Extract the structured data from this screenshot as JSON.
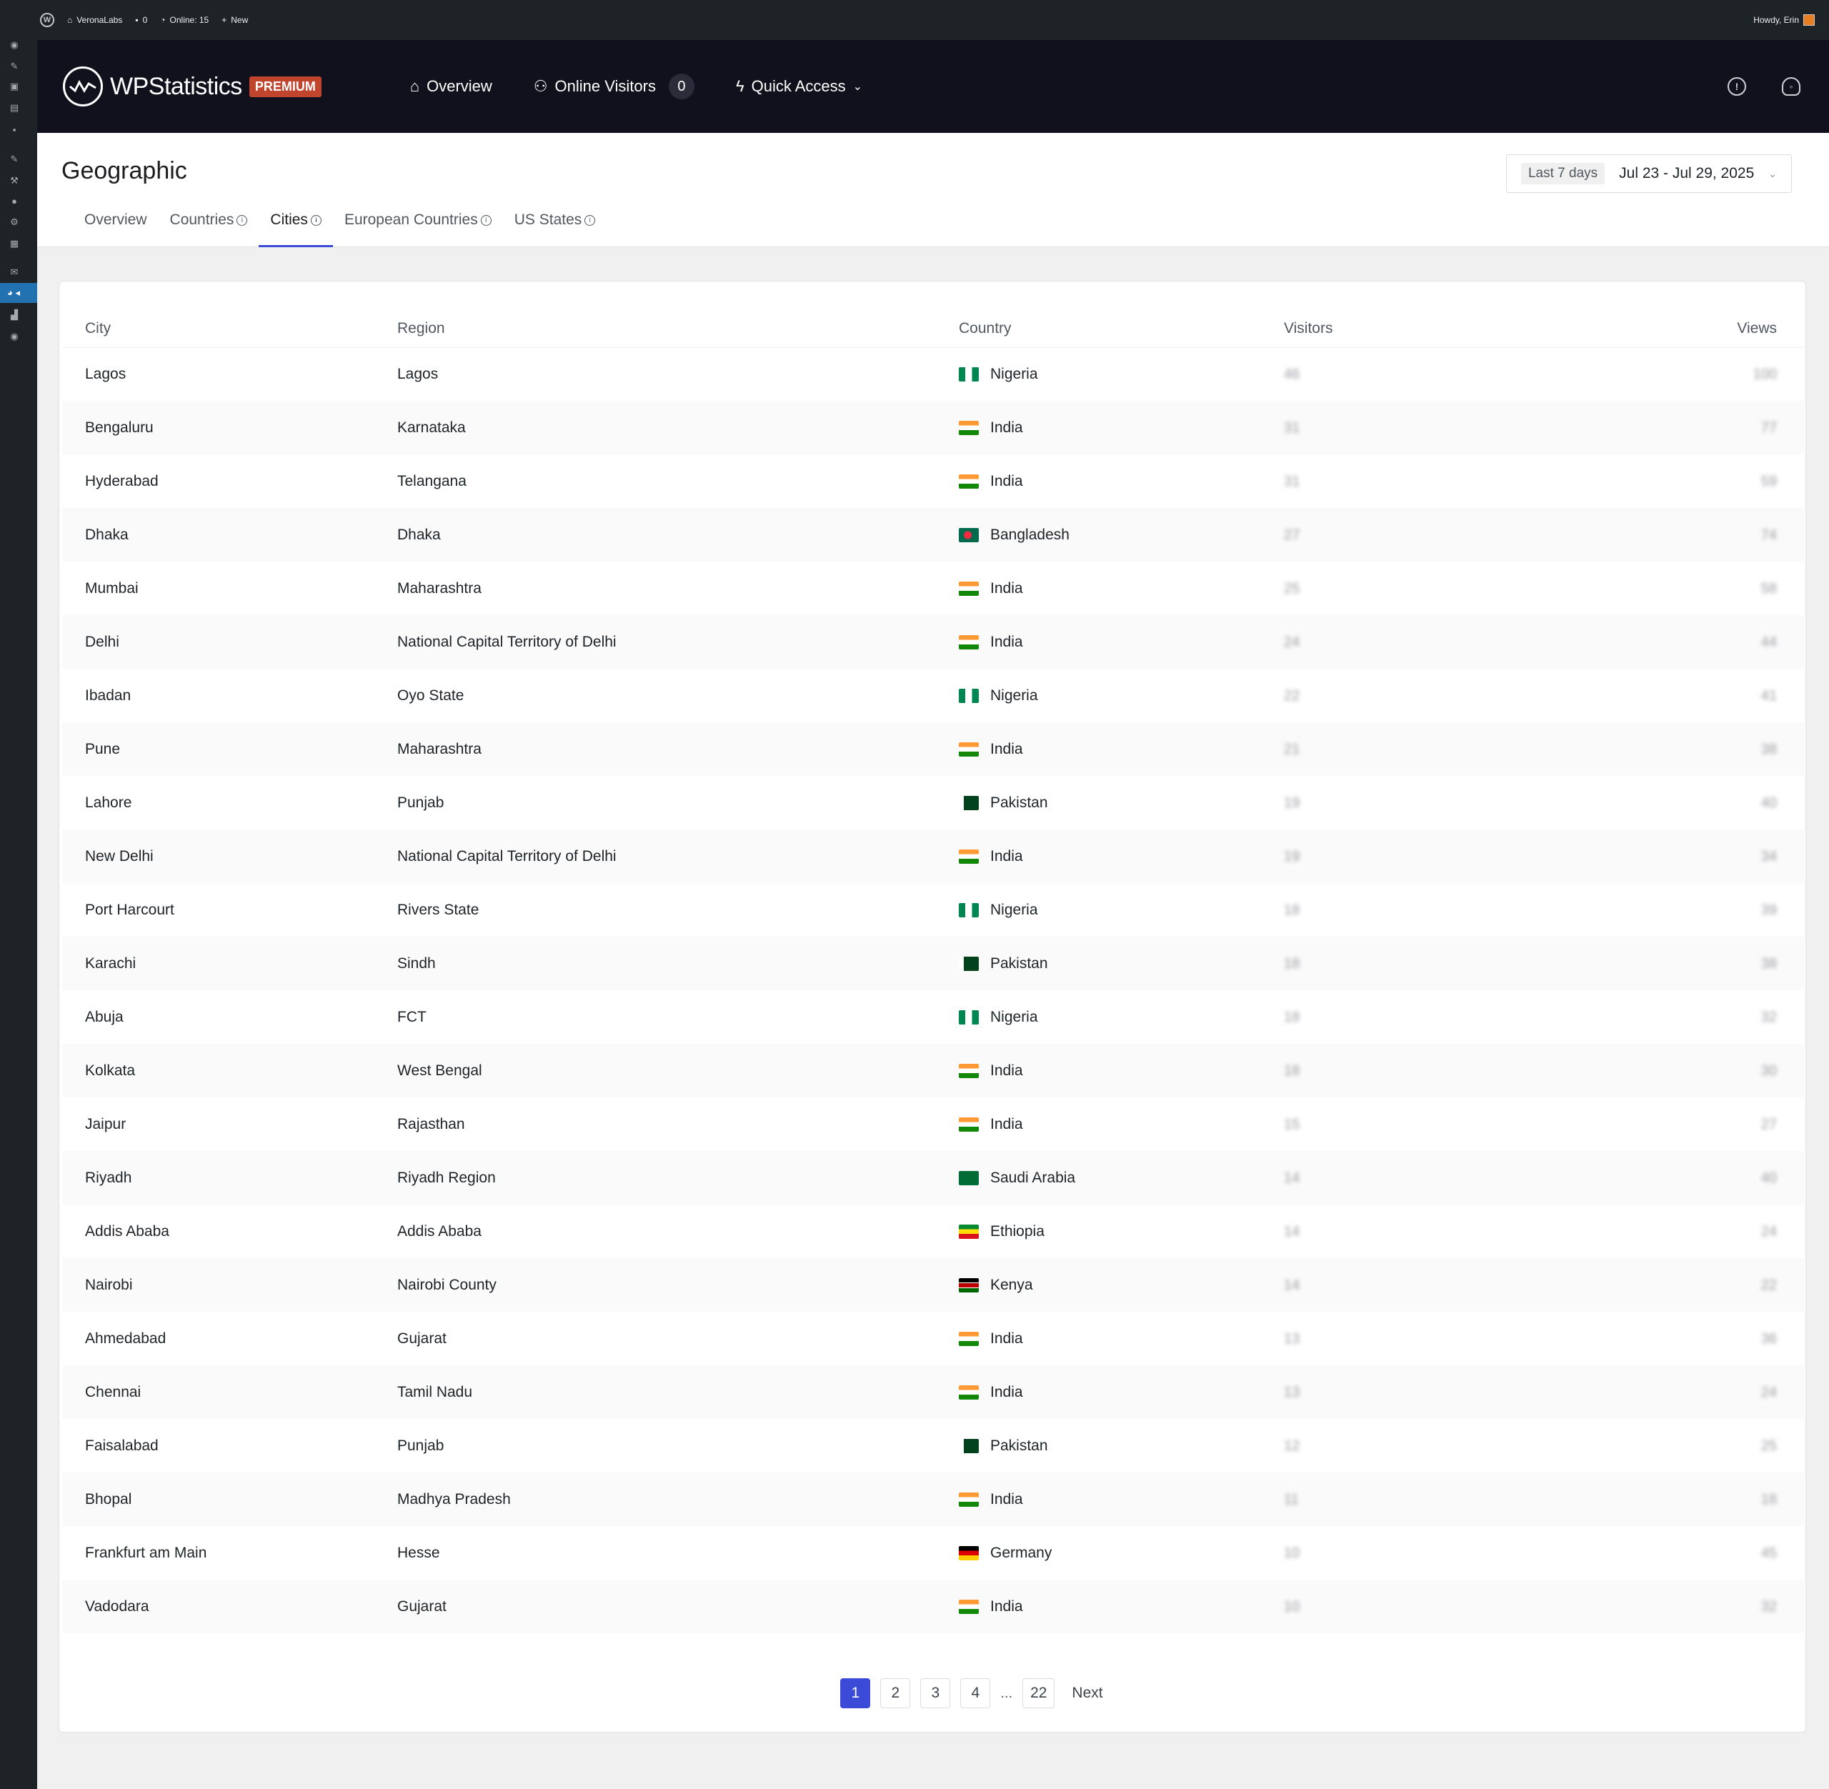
{
  "admin_bar": {
    "site_name": "VeronaLabs",
    "comments_count": "0",
    "online": "Online: 15",
    "new_label": "New",
    "greeting": "Howdy, Erin"
  },
  "header": {
    "logo_text": "WPStatistics",
    "premium_badge": "PREMIUM",
    "nav": {
      "overview": "Overview",
      "online_visitors": "Online Visitors",
      "online_visitors_count": "0",
      "quick_access": "Quick Access"
    }
  },
  "page": {
    "title": "Geographic",
    "date_preset": "Last 7 days",
    "date_range": "Jul 23 - Jul 29, 2025",
    "tabs": [
      {
        "label": "Overview"
      },
      {
        "label": "Countries"
      },
      {
        "label": "Cities"
      },
      {
        "label": "European Countries"
      },
      {
        "label": "US States"
      }
    ]
  },
  "table": {
    "columns": {
      "city": "City",
      "region": "Region",
      "country": "Country",
      "visitors": "Visitors",
      "views": "Views"
    },
    "rows": [
      {
        "city": "Lagos",
        "region": "Lagos",
        "country": "Nigeria",
        "flag": "nigeria",
        "visitors": "46",
        "views": "100"
      },
      {
        "city": "Bengaluru",
        "region": "Karnataka",
        "country": "India",
        "flag": "india",
        "visitors": "31",
        "views": "77"
      },
      {
        "city": "Hyderabad",
        "region": "Telangana",
        "country": "India",
        "flag": "india",
        "visitors": "31",
        "views": "59"
      },
      {
        "city": "Dhaka",
        "region": "Dhaka",
        "country": "Bangladesh",
        "flag": "bangladesh",
        "visitors": "27",
        "views": "74"
      },
      {
        "city": "Mumbai",
        "region": "Maharashtra",
        "country": "India",
        "flag": "india",
        "visitors": "25",
        "views": "58"
      },
      {
        "city": "Delhi",
        "region": "National Capital Territory of Delhi",
        "country": "India",
        "flag": "india",
        "visitors": "24",
        "views": "44"
      },
      {
        "city": "Ibadan",
        "region": "Oyo State",
        "country": "Nigeria",
        "flag": "nigeria",
        "visitors": "22",
        "views": "41"
      },
      {
        "city": "Pune",
        "region": "Maharashtra",
        "country": "India",
        "flag": "india",
        "visitors": "21",
        "views": "38"
      },
      {
        "city": "Lahore",
        "region": "Punjab",
        "country": "Pakistan",
        "flag": "pakistan",
        "visitors": "19",
        "views": "40"
      },
      {
        "city": "New Delhi",
        "region": "National Capital Territory of Delhi",
        "country": "India",
        "flag": "india",
        "visitors": "19",
        "views": "34"
      },
      {
        "city": "Port Harcourt",
        "region": "Rivers State",
        "country": "Nigeria",
        "flag": "nigeria",
        "visitors": "18",
        "views": "39"
      },
      {
        "city": "Karachi",
        "region": "Sindh",
        "country": "Pakistan",
        "flag": "pakistan",
        "visitors": "18",
        "views": "38"
      },
      {
        "city": "Abuja",
        "region": "FCT",
        "country": "Nigeria",
        "flag": "nigeria",
        "visitors": "18",
        "views": "32"
      },
      {
        "city": "Kolkata",
        "region": "West Bengal",
        "country": "India",
        "flag": "india",
        "visitors": "18",
        "views": "30"
      },
      {
        "city": "Jaipur",
        "region": "Rajasthan",
        "country": "India",
        "flag": "india",
        "visitors": "15",
        "views": "27"
      },
      {
        "city": "Riyadh",
        "region": "Riyadh Region",
        "country": "Saudi Arabia",
        "flag": "saudi-arabia",
        "visitors": "14",
        "views": "40"
      },
      {
        "city": "Addis Ababa",
        "region": "Addis Ababa",
        "country": "Ethiopia",
        "flag": "ethiopia",
        "visitors": "14",
        "views": "24"
      },
      {
        "city": "Nairobi",
        "region": "Nairobi County",
        "country": "Kenya",
        "flag": "kenya",
        "visitors": "14",
        "views": "22"
      },
      {
        "city": "Ahmedabad",
        "region": "Gujarat",
        "country": "India",
        "flag": "india",
        "visitors": "13",
        "views": "36"
      },
      {
        "city": "Chennai",
        "region": "Tamil Nadu",
        "country": "India",
        "flag": "india",
        "visitors": "13",
        "views": "24"
      },
      {
        "city": "Faisalabad",
        "region": "Punjab",
        "country": "Pakistan",
        "flag": "pakistan",
        "visitors": "12",
        "views": "25"
      },
      {
        "city": "Bhopal",
        "region": "Madhya Pradesh",
        "country": "India",
        "flag": "india",
        "visitors": "11",
        "views": "18"
      },
      {
        "city": "Frankfurt am Main",
        "region": "Hesse",
        "country": "Germany",
        "flag": "germany",
        "visitors": "10",
        "views": "45"
      },
      {
        "city": "Vadodara",
        "region": "Gujarat",
        "country": "India",
        "flag": "india",
        "visitors": "10",
        "views": "32"
      }
    ]
  },
  "pagination": {
    "pages": [
      "1",
      "2",
      "3",
      "4"
    ],
    "ellipsis": "...",
    "last": "22",
    "next": "Next"
  }
}
